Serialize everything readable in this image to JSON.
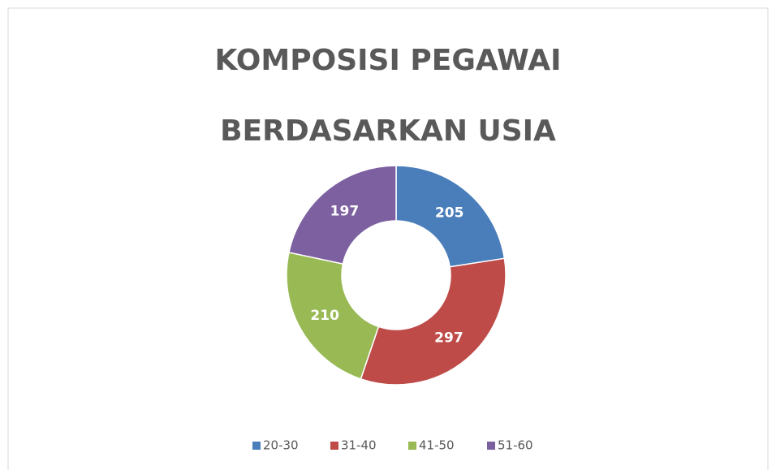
{
  "chart_data": {
    "type": "donut",
    "title": [
      "KOMPOSISI PEGAWAI",
      "BERDASARKAN USIA"
    ],
    "categories": [
      "20-30",
      "31-40",
      "41-50",
      "51-60"
    ],
    "values": [
      205,
      297,
      210,
      197
    ],
    "colors": [
      "#4a7ebb",
      "#be4b48",
      "#98b954",
      "#7d60a0"
    ],
    "legend": "bottom"
  }
}
